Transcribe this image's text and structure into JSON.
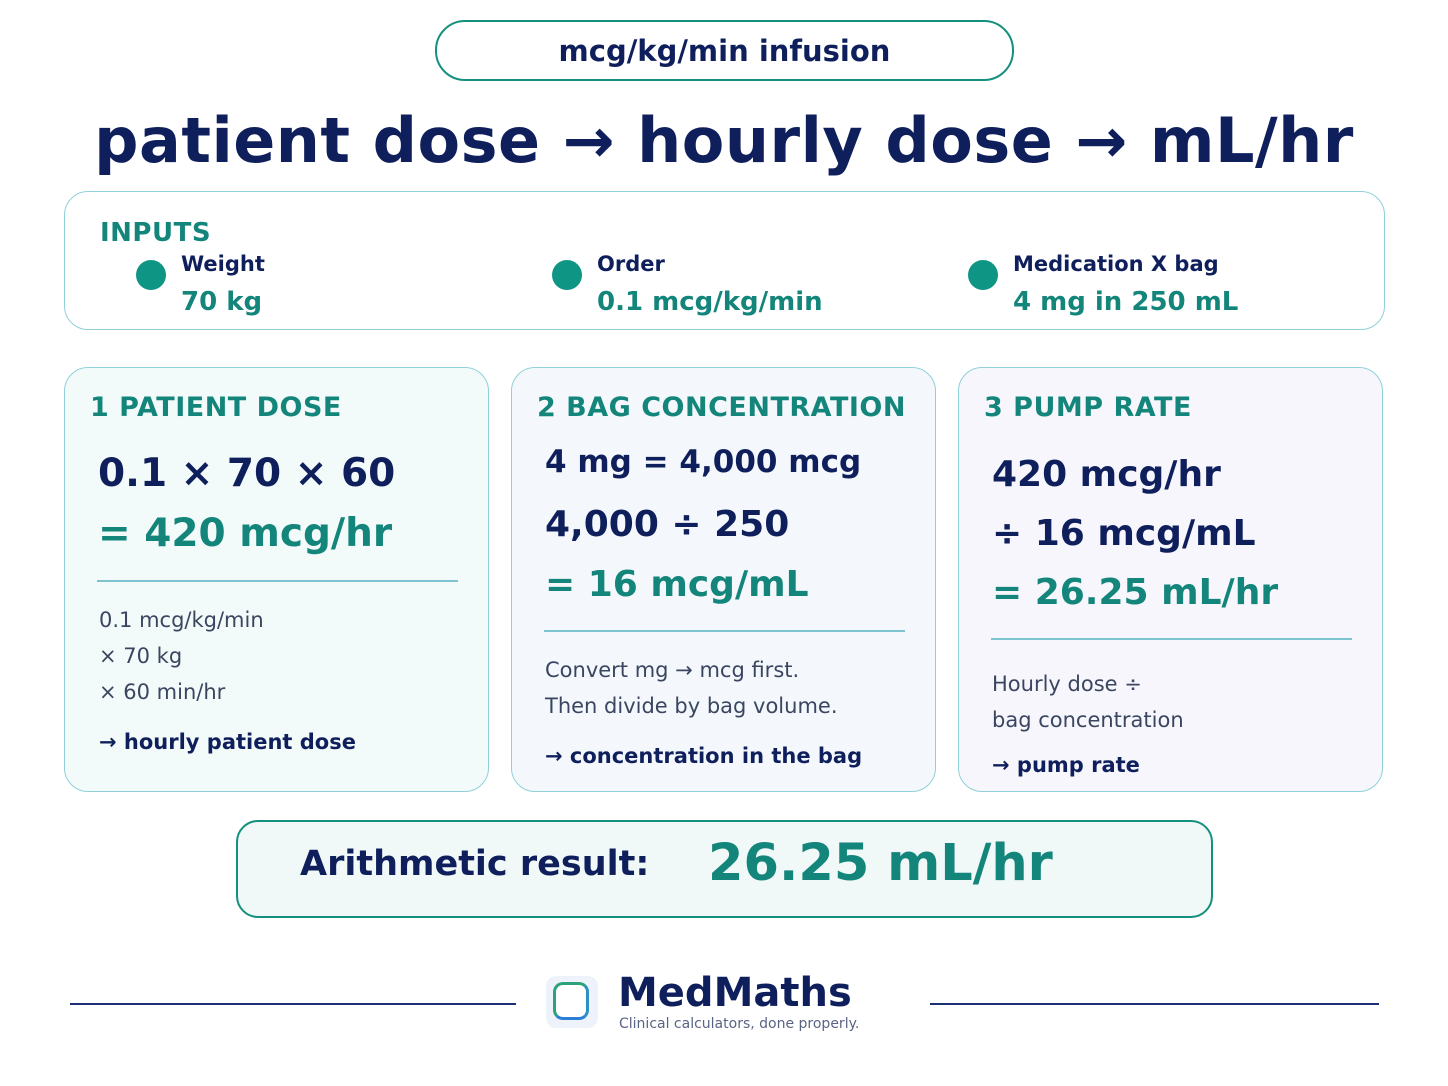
{
  "badge": "mcg/kg/min infusion",
  "headline": "patient dose → hourly dose → mL/hr",
  "inputs": {
    "title": "INPUTS",
    "items": [
      {
        "label": "Weight",
        "value": "70 kg"
      },
      {
        "label": "Order",
        "value": "0.1 mcg/kg/min"
      },
      {
        "label": "Medication X bag",
        "value": "4 mg in 250 mL"
      }
    ]
  },
  "steps": [
    {
      "title": "1  PATIENT DOSE",
      "lines": [
        "0.1 × 70 × 60",
        "= 420 mcg/hr"
      ],
      "notes": [
        "0.1 mcg/kg/min",
        "× 70 kg",
        "× 60 min/hr"
      ],
      "tag": "→ hourly patient dose"
    },
    {
      "title": "2  BAG CONCENTRATION",
      "lines": [
        "4 mg = 4,000 mcg",
        "4,000 ÷ 250",
        "= 16 mcg/mL"
      ],
      "notes": [
        "Convert mg → mcg first.",
        "Then divide by bag volume."
      ],
      "tag": "→ concentration in the bag"
    },
    {
      "title": "3  PUMP RATE",
      "lines": [
        "420 mcg/hr",
        "÷ 16 mcg/mL",
        "= 26.25 mL/hr"
      ],
      "notes": [
        "Hourly dose ÷",
        "bag concentration"
      ],
      "tag": "→ pump rate"
    }
  ],
  "result": {
    "label": "Arithmetic result:",
    "value": "26.25 mL/hr"
  },
  "footer": {
    "brand": "MedMaths",
    "tagline": "Clinical calculators, done properly."
  },
  "colors": {
    "navy": "#0f1f5c",
    "teal": "#13857a",
    "dot": "#0f9584",
    "border": "#8fd0d8"
  }
}
